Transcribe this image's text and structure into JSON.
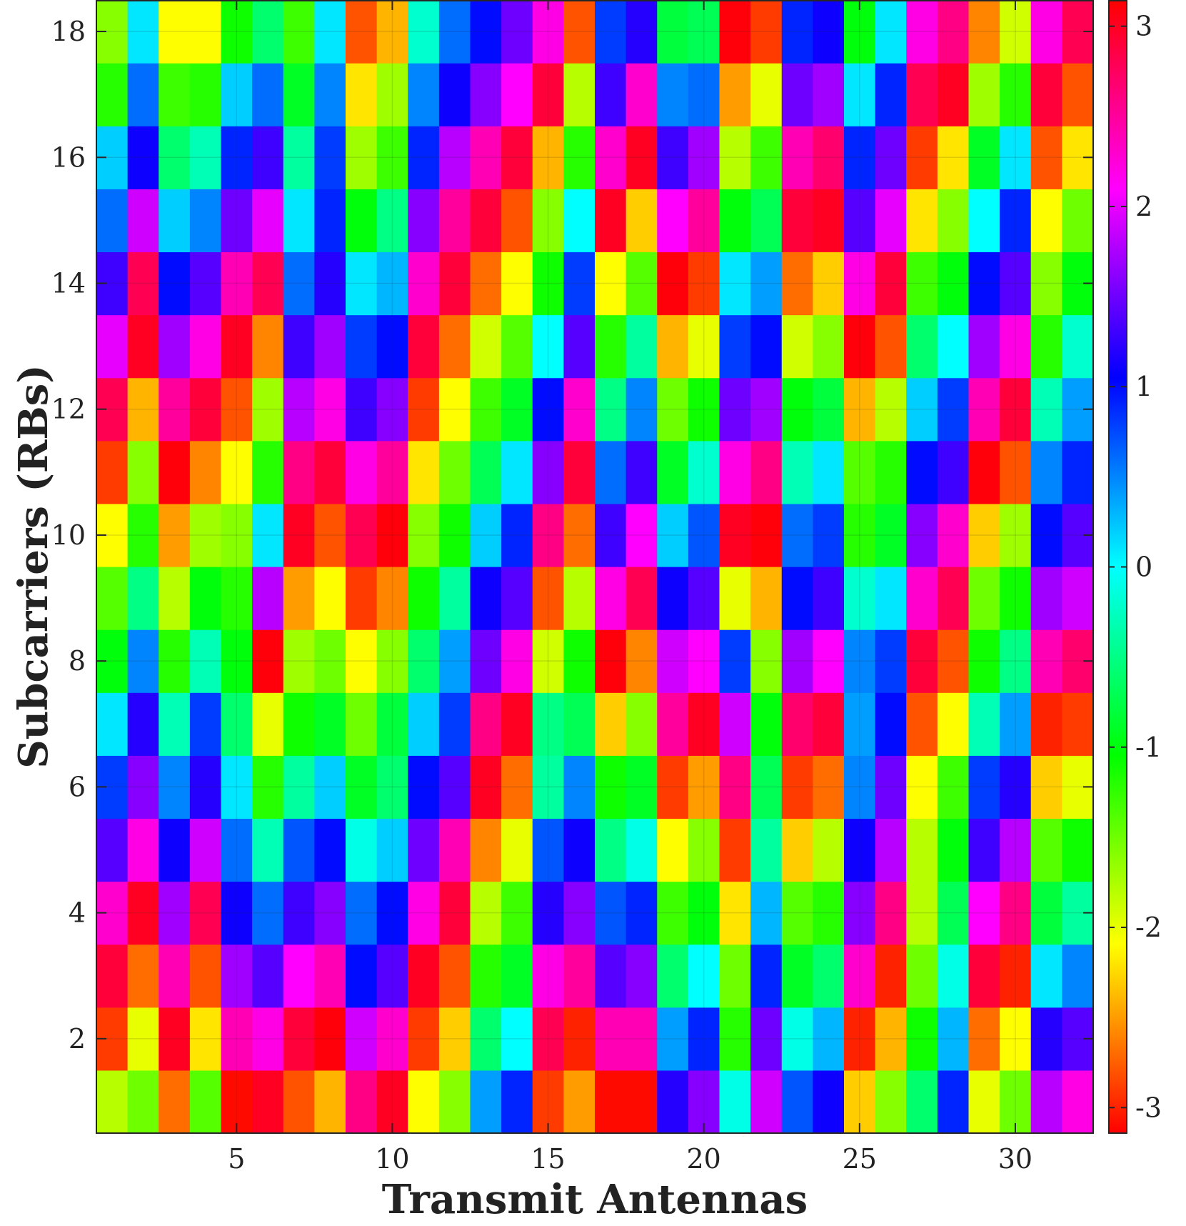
{
  "chart_data": {
    "type": "heatmap",
    "xlabel": "Transmit Antennas",
    "ylabel": "Subcarriers (RBs)",
    "x_range": [
      1,
      32
    ],
    "y_range": [
      1,
      18
    ],
    "x_ticks": [
      5,
      10,
      15,
      20,
      25,
      30
    ],
    "y_ticks": [
      2,
      4,
      6,
      8,
      10,
      12,
      14,
      16,
      18
    ],
    "colorbar": {
      "range": [
        -3.14159,
        3.14159
      ],
      "ticks": [
        -3,
        -2,
        -1,
        0,
        1,
        2,
        3
      ],
      "tick_labels": [
        "-3",
        "-2",
        "-1",
        "0",
        "1",
        "2",
        "3"
      ],
      "colormap": "hsv",
      "colormap_stops": [
        {
          "value": -3.14159,
          "color": "#ff0000"
        },
        {
          "value": -2.0944,
          "color": "#ffff00"
        },
        {
          "value": -1.0472,
          "color": "#00ff00"
        },
        {
          "value": 0,
          "color": "#00ffff"
        },
        {
          "value": 1.0472,
          "color": "#0000ff"
        },
        {
          "value": 2.0944,
          "color": "#ff00ff"
        },
        {
          "value": 3.14159,
          "color": "#ff0000"
        }
      ]
    },
    "grid": true,
    "colorbar_position": "right",
    "rows_note_order": "row index 0 = subcarrier 1 (bottom)",
    "values": [
      [
        -1.8,
        -1.5,
        -2.7,
        -1.4,
        -3.1,
        3.0,
        -2.8,
        -2.4,
        2.6,
        3.0,
        -2.1,
        -1.6,
        0.4,
        0.9,
        -2.9,
        -2.5,
        -3.1,
        -3.1,
        1.2,
        1.6,
        -0.1,
        1.9,
        0.7,
        1.1,
        -2.3,
        -1.6,
        -0.6,
        0.9,
        -2.0,
        -1.5,
        1.8,
        2.2
      ],
      [
        -2.9,
        -2.0,
        3.0,
        -2.2,
        2.4,
        2.2,
        2.9,
        3.1,
        1.9,
        2.3,
        -2.9,
        -2.3,
        -0.6,
        0.0,
        2.8,
        -3.0,
        2.4,
        2.4,
        0.4,
        0.9,
        -1.2,
        1.5,
        -0.1,
        0.3,
        -3.0,
        -2.4,
        -1.1,
        0.3,
        -2.7,
        -2.1,
        1.2,
        1.4
      ],
      [
        2.9,
        -2.7,
        2.4,
        -2.8,
        1.7,
        1.4,
        2.1,
        2.4,
        1.0,
        1.4,
        3.0,
        -2.8,
        -1.2,
        -0.9,
        2.2,
        2.5,
        1.4,
        1.6,
        -0.6,
        0.0,
        -1.5,
        0.9,
        -0.9,
        -0.6,
        2.3,
        -3.0,
        -1.5,
        -0.1,
        2.9,
        -3.0,
        0.1,
        0.5
      ],
      [
        2.3,
        3.0,
        1.7,
        2.8,
        1.1,
        0.6,
        1.3,
        1.6,
        0.6,
        1.0,
        2.2,
        2.9,
        -1.8,
        -1.3,
        1.2,
        1.6,
        0.7,
        0.9,
        -1.3,
        -1.0,
        -2.2,
        0.3,
        -1.4,
        -1.2,
        1.6,
        2.6,
        -1.8,
        -0.7,
        2.1,
        2.6,
        -0.8,
        -0.4
      ],
      [
        1.4,
        2.2,
        1.1,
        1.9,
        0.6,
        -0.3,
        0.7,
        1.0,
        -0.1,
        0.2,
        1.5,
        2.4,
        -2.6,
        -2.0,
        0.7,
        1.1,
        -0.5,
        -0.1,
        -2.1,
        -1.6,
        -2.9,
        -0.4,
        -2.3,
        -1.8,
        1.1,
        1.8,
        -1.8,
        -1.0,
        1.3,
        1.8,
        -1.4,
        -1.1
      ],
      [
        0.8,
        1.6,
        0.5,
        1.2,
        0.1,
        -1.2,
        -0.4,
        0.2,
        -0.9,
        -0.6,
        1.0,
        1.4,
        3.0,
        -2.7,
        -0.4,
        0.5,
        -1.1,
        -0.9,
        -2.9,
        -2.5,
        2.6,
        -0.7,
        -2.9,
        -2.7,
        0.5,
        1.5,
        -2.1,
        -1.3,
        0.8,
        1.2,
        -2.3,
        -2.0
      ],
      [
        0.1,
        1.2,
        -0.3,
        0.8,
        -0.6,
        -2.0,
        -1.1,
        -0.9,
        -1.5,
        -0.8,
        0.2,
        0.8,
        2.6,
        3.0,
        -0.5,
        -0.7,
        -2.3,
        -1.6,
        2.5,
        3.0,
        1.9,
        -1.0,
        2.7,
        2.9,
        0.4,
        1.0,
        -2.8,
        -2.1,
        -0.3,
        0.4,
        -3.0,
        -2.9
      ],
      [
        -1.0,
        0.5,
        -1.2,
        -0.3,
        -1.0,
        3.1,
        -1.7,
        -1.5,
        -2.1,
        -1.6,
        -0.6,
        0.4,
        1.5,
        2.2,
        -1.9,
        -1.1,
        3.1,
        -2.6,
        1.9,
        2.1,
        0.8,
        -1.6,
        1.7,
        2.1,
        0.5,
        0.8,
        2.9,
        -2.8,
        -1.1,
        -0.5,
        2.4,
        2.7
      ],
      [
        -1.4,
        -0.5,
        -1.8,
        -1.0,
        -1.2,
        1.8,
        -2.5,
        -2.1,
        -2.9,
        -2.6,
        -1.1,
        -0.4,
        1.1,
        1.4,
        -2.8,
        -1.8,
        2.2,
        2.8,
        1.1,
        1.4,
        -2.0,
        -2.4,
        1.0,
        1.3,
        -0.2,
        0.1,
        2.3,
        2.8,
        -1.5,
        -1.1,
        1.7,
        1.9
      ],
      [
        -2.1,
        -1.2,
        -2.5,
        -1.7,
        -1.6,
        0.1,
        3.0,
        -2.8,
        2.8,
        3.1,
        -1.6,
        -1.1,
        0.2,
        0.9,
        2.6,
        -2.7,
        1.3,
        2.1,
        0.2,
        0.7,
        3.0,
        3.1,
        0.6,
        0.8,
        -1.2,
        -0.9,
        1.6,
        2.3,
        -2.3,
        -1.7,
        1.0,
        1.4
      ],
      [
        -2.9,
        -1.6,
        3.1,
        -2.6,
        -2.1,
        -1.2,
        2.6,
        2.9,
        2.2,
        2.5,
        -2.2,
        -1.5,
        -0.7,
        0.1,
        1.6,
        2.9,
        0.6,
        1.3,
        -0.9,
        -0.2,
        2.2,
        2.6,
        -0.3,
        0.1,
        -1.4,
        -1.2,
        1.0,
        1.3,
        3.1,
        -2.8,
        0.5,
        0.9
      ],
      [
        2.8,
        -2.4,
        2.5,
        2.9,
        -2.8,
        -1.7,
        1.8,
        2.2,
        1.3,
        1.6,
        -2.9,
        -2.1,
        -1.3,
        -0.9,
        1.0,
        2.3,
        -0.5,
        0.5,
        -1.5,
        -1.1,
        1.5,
        1.7,
        -1.0,
        -0.8,
        -2.4,
        -1.8,
        0.2,
        0.8,
        2.4,
        2.9,
        -0.3,
        0.4
      ],
      [
        2.0,
        3.0,
        1.7,
        2.2,
        3.0,
        -2.6,
        1.3,
        1.7,
        0.8,
        1.0,
        2.9,
        -2.7,
        -1.9,
        -1.4,
        0.0,
        1.4,
        -1.2,
        -0.4,
        -2.4,
        -2.0,
        0.8,
        1.0,
        -1.9,
        -1.6,
        3.1,
        -2.8,
        -0.6,
        0.0,
        1.7,
        2.2,
        -1.2,
        -0.2
      ],
      [
        1.3,
        2.8,
        1.0,
        1.4,
        2.4,
        2.8,
        0.6,
        1.2,
        0.1,
        0.3,
        2.3,
        2.9,
        -2.7,
        -2.1,
        -1.1,
        0.8,
        -2.1,
        -1.4,
        3.1,
        -2.9,
        0.1,
        0.4,
        -2.7,
        -2.3,
        2.2,
        2.9,
        -1.3,
        -1.0,
        1.0,
        1.4,
        -1.6,
        -1.0
      ],
      [
        0.6,
        1.9,
        0.2,
        0.5,
        1.5,
        2.0,
        0.1,
        0.9,
        -1.0,
        -0.5,
        1.6,
        2.5,
        2.9,
        -2.8,
        -1.6,
        0.0,
        3.0,
        -2.3,
        2.1,
        2.5,
        -1.0,
        -0.7,
        2.9,
        3.0,
        1.4,
        2.0,
        -2.2,
        -1.6,
        0.0,
        0.9,
        -2.1,
        -1.5
      ],
      [
        0.2,
        1.1,
        -0.6,
        -0.3,
        0.9,
        1.3,
        -0.4,
        0.8,
        -1.7,
        -1.3,
        0.9,
        1.8,
        2.4,
        2.9,
        -2.4,
        -1.2,
        2.3,
        3.0,
        1.3,
        1.7,
        -1.8,
        -1.3,
        2.4,
        2.7,
        0.9,
        1.5,
        -2.9,
        -2.2,
        -0.9,
        0.1,
        -2.8,
        -2.2
      ],
      [
        -1.2,
        0.6,
        -1.3,
        -1.2,
        0.2,
        0.6,
        -0.9,
        0.5,
        -2.2,
        -1.7,
        0.5,
        1.1,
        1.6,
        2.1,
        2.9,
        -1.8,
        1.3,
        2.3,
        0.5,
        0.6,
        -2.5,
        -2.0,
        1.5,
        1.7,
        0.1,
        0.9,
        2.8,
        3.0,
        -1.7,
        -1.2,
        2.9,
        -2.8
      ],
      [
        -1.6,
        0.1,
        -2.1,
        -2.1,
        -1.1,
        -0.6,
        -1.3,
        0.1,
        -2.8,
        -2.4,
        -0.2,
        0.6,
        1.0,
        1.5,
        2.2,
        -2.8,
        0.8,
        1.2,
        -0.8,
        -0.7,
        3.1,
        -2.9,
        0.9,
        1.1,
        -1.0,
        0.1,
        2.2,
        2.6,
        -2.6,
        -1.9,
        2.2,
        2.8
      ]
    ]
  }
}
